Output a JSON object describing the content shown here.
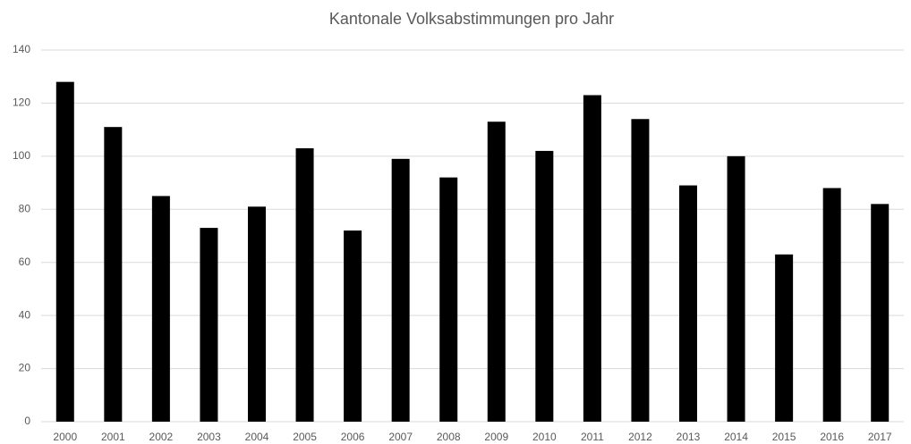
{
  "chart_data": {
    "type": "bar",
    "title": "Kantonale Volksabstimmungen  pro Jahr",
    "categories": [
      "2000",
      "2001",
      "2002",
      "2003",
      "2004",
      "2005",
      "2006",
      "2007",
      "2008",
      "2009",
      "2010",
      "2011",
      "2012",
      "2013",
      "2014",
      "2015",
      "2016",
      "2017"
    ],
    "values": [
      128,
      111,
      85,
      73,
      81,
      103,
      72,
      99,
      92,
      113,
      102,
      123,
      114,
      89,
      100,
      63,
      88,
      82
    ],
    "color": "#000000",
    "ylim": [
      0,
      140
    ],
    "yticks": [
      0,
      20,
      40,
      60,
      80,
      100,
      120,
      140
    ],
    "grid": true
  }
}
